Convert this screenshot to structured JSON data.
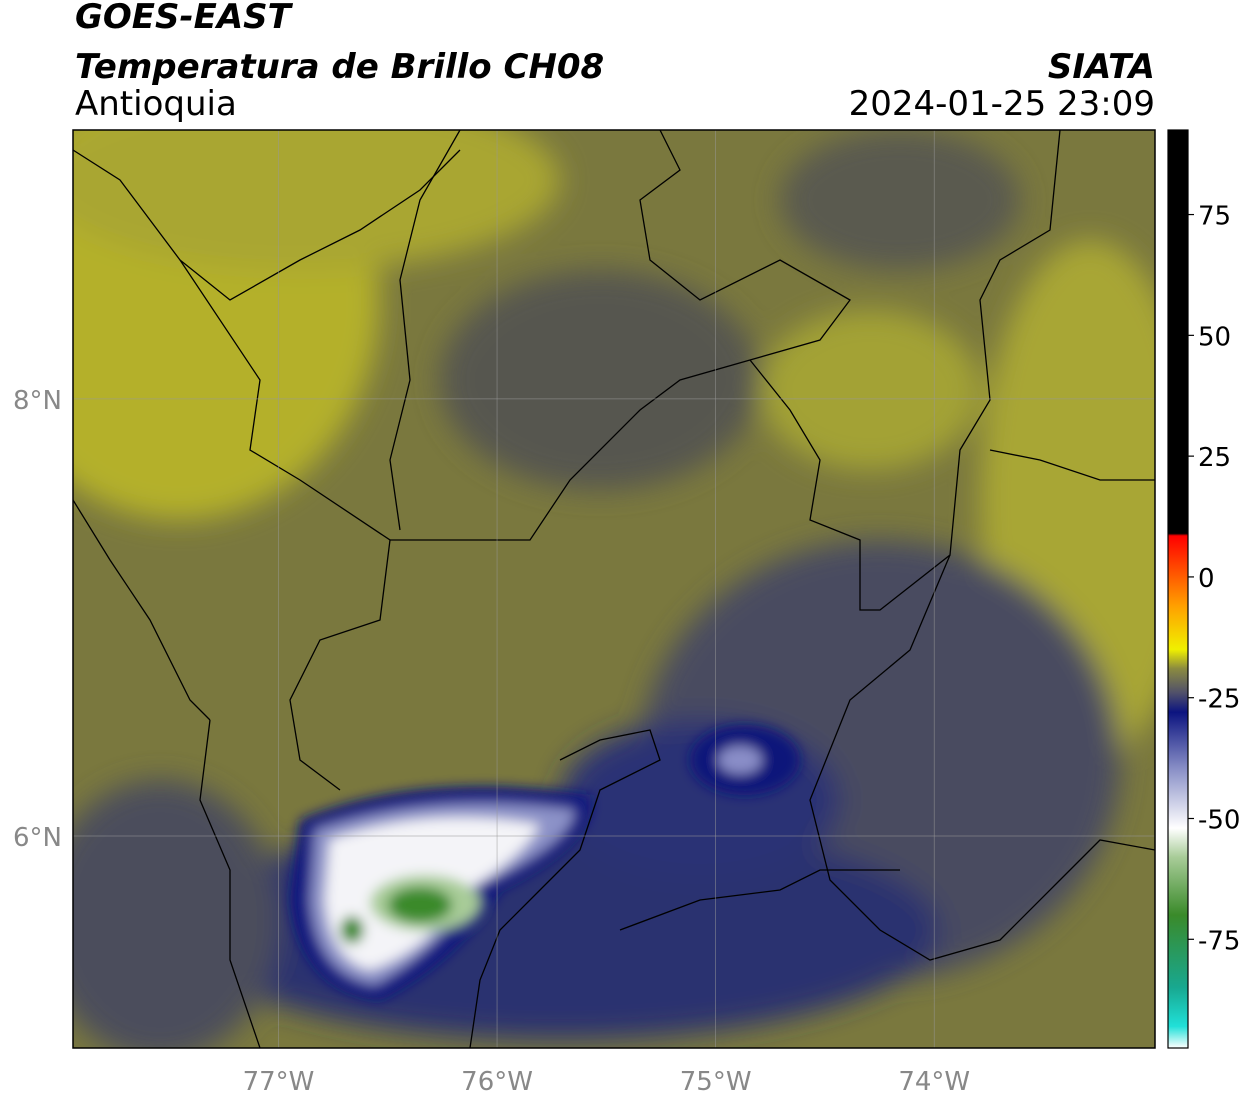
{
  "header": {
    "title": "GOES-EAST",
    "subtitle": "Temperatura de Brillo CH08",
    "region": "Antioquia",
    "source": "SIATA",
    "timestamp": "2024-01-25 23:09"
  },
  "map": {
    "xlim": [
      -77.94,
      -72.99
    ],
    "ylim": [
      5.03,
      9.23
    ],
    "xticks": [
      {
        "value": -77,
        "label": "77°W"
      },
      {
        "value": -76,
        "label": "76°W"
      },
      {
        "value": -75,
        "label": "75°W"
      },
      {
        "value": -74,
        "label": "74°W"
      }
    ],
    "yticks": [
      {
        "value": 8,
        "label": "8°N"
      },
      {
        "value": 6,
        "label": "6°N"
      }
    ],
    "grid": true
  },
  "colorbar": {
    "lim": [
      -97.5,
      92.5
    ],
    "ticks": [
      75,
      50,
      25,
      0,
      -25,
      -50,
      -75
    ],
    "stops": [
      {
        "value": -97.5,
        "color": "#ffffff"
      },
      {
        "value": -93,
        "color": "#20e0d8"
      },
      {
        "value": -85,
        "color": "#18a890"
      },
      {
        "value": -70,
        "color": "#3a8a2a"
      },
      {
        "value": -58,
        "color": "#a8cc98"
      },
      {
        "value": -52,
        "color": "#ffffff"
      },
      {
        "value": -40,
        "color": "#8c92c8"
      },
      {
        "value": -28,
        "color": "#0c1480"
      },
      {
        "value": -24,
        "color": "#50506a"
      },
      {
        "value": -19,
        "color": "#8a8a40"
      },
      {
        "value": -15,
        "color": "#f0f000"
      },
      {
        "value": -6,
        "color": "#ffa000"
      },
      {
        "value": 8.5,
        "color": "#ff0000"
      },
      {
        "value": 9,
        "color": "#000000"
      },
      {
        "value": 92.5,
        "color": "#000000"
      }
    ]
  }
}
